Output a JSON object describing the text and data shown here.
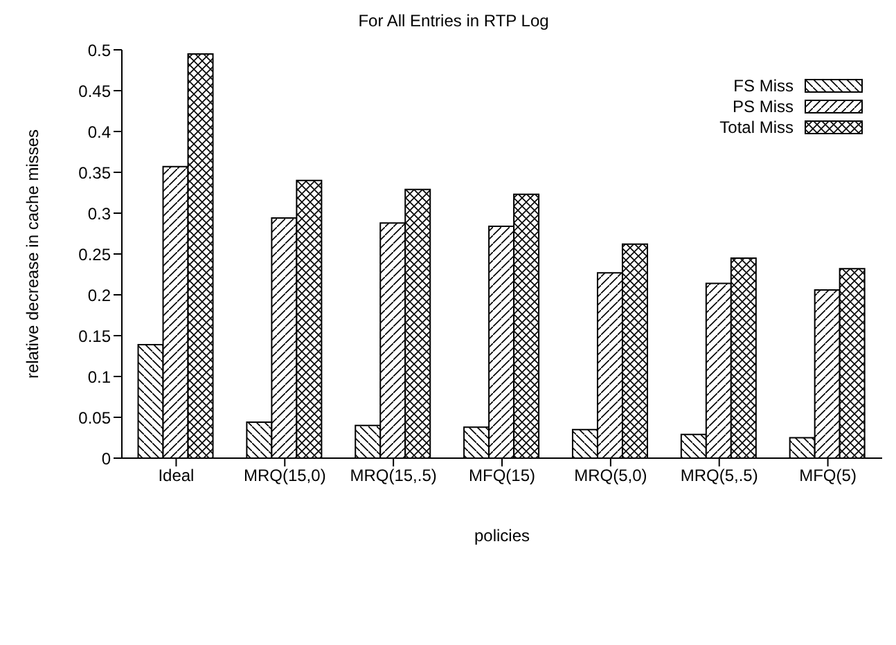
{
  "chart_data": {
    "type": "bar",
    "title": "For All Entries in RTP Log",
    "xlabel": "policies",
    "ylabel": "relative decrease in cache misses",
    "categories": [
      "Ideal",
      "MRQ(15,0)",
      "MRQ(15,.5)",
      "MFQ(15)",
      "MRQ(5,0)",
      "MRQ(5,.5)",
      "MFQ(5)"
    ],
    "series": [
      {
        "name": "FS Miss",
        "color": "#000000",
        "values": [
          0.139,
          0.044,
          0.04,
          0.038,
          0.035,
          0.029,
          0.025
        ]
      },
      {
        "name": "PS Miss",
        "color": "#000000",
        "values": [
          0.357,
          0.294,
          0.288,
          0.284,
          0.227,
          0.214,
          0.206
        ]
      },
      {
        "name": "Total Miss",
        "color": "#000000",
        "values": [
          0.495,
          0.34,
          0.329,
          0.323,
          0.262,
          0.245,
          0.232
        ]
      }
    ],
    "ylim": [
      0,
      0.5
    ],
    "yticks": [
      0,
      0.05,
      0.1,
      0.15,
      0.2,
      0.25,
      0.3,
      0.35,
      0.4,
      0.45,
      0.5
    ],
    "legend": "top right"
  }
}
